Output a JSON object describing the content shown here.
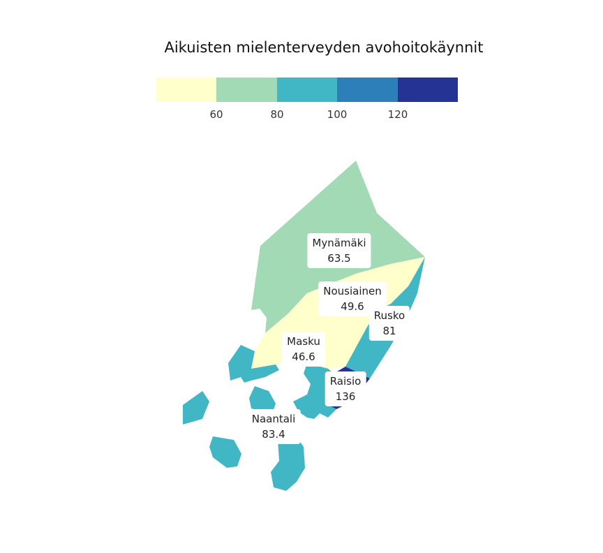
{
  "title": "Aikuisten mielenterveyden avohoitokäynnit",
  "legend": {
    "colors": [
      "#ffffcc",
      "#a1dab4",
      "#41b6c4",
      "#2c7fb8",
      "#253494"
    ],
    "breaks": [
      "60",
      "80",
      "100",
      "120"
    ]
  },
  "regions": [
    {
      "name": "Mynämäki",
      "value": "63.5",
      "color": "#a1dab4"
    },
    {
      "name": "Nousiainen",
      "value": "49.6",
      "color": "#ffffcc"
    },
    {
      "name": "Rusko",
      "value": "81",
      "color": "#41b6c4"
    },
    {
      "name": "Masku",
      "value": "46.6",
      "color": "#ffffcc"
    },
    {
      "name": "Raisio",
      "value": "136",
      "color": "#253494"
    },
    {
      "name": "Naantali",
      "value": "83.4",
      "color": "#41b6c4"
    }
  ]
}
